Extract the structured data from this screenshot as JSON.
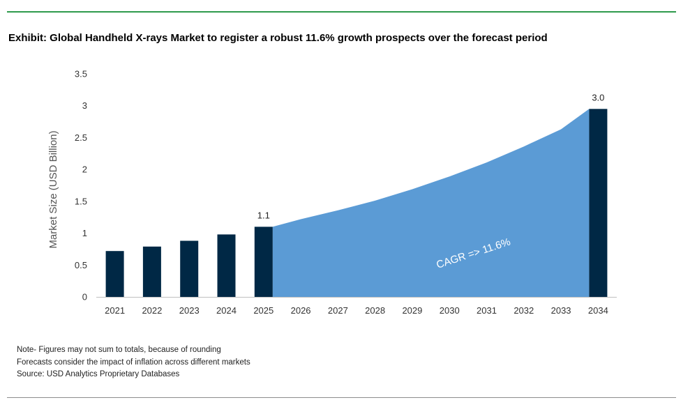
{
  "title": "Exhibit: Global Handheld X-rays Market to register a robust 11.6% growth prospects over the forecast period",
  "notes": [
    "Note- Figures may not sum to totals, because of rounding",
    "Forecasts consider the impact of inflation across different markets",
    "Source: USD Analytics Proprietary Databases"
  ],
  "colors": {
    "bar": "#002845",
    "area": "#5b9bd5",
    "rule_top": "#2e9a4c"
  },
  "chart_data": {
    "type": "bar",
    "categories": [
      "2021",
      "2022",
      "2023",
      "2024",
      "2025",
      "2026",
      "2027",
      "2028",
      "2029",
      "2030",
      "2031",
      "2032",
      "2033",
      "2034"
    ],
    "values": [
      0.72,
      0.79,
      0.88,
      0.98,
      1.1,
      null,
      null,
      null,
      null,
      null,
      null,
      null,
      null,
      2.95
    ],
    "forecast_area": {
      "type": "area",
      "x": [
        "2025",
        "2026",
        "2027",
        "2028",
        "2029",
        "2030",
        "2031",
        "2032",
        "2033",
        "2034"
      ],
      "values": [
        1.1,
        1.22,
        1.36,
        1.51,
        1.69,
        1.89,
        2.11,
        2.36,
        2.63,
        2.95
      ]
    },
    "data_labels": {
      "2025": "1.1",
      "2034": "3.0"
    },
    "annotation": "CAGR => 11.6%",
    "ylabel": "Market Size (USD Billion)",
    "xlabel": "",
    "ylim": [
      0,
      3.5
    ],
    "yticks": [
      0,
      0.5,
      1,
      1.5,
      2,
      2.5,
      3,
      3.5
    ],
    "ytick_labels": [
      "0",
      "0.5",
      "1",
      "1.5",
      "2",
      "2.5",
      "3",
      "3.5"
    ],
    "grid": false,
    "legend": "none"
  }
}
